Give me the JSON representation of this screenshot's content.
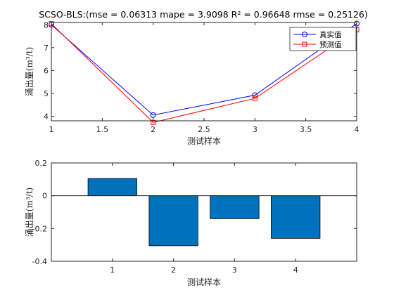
{
  "chart_data": [
    {
      "type": "line",
      "title": "SCSO-BLS:(mse = 0.06313 mape = 3.9098  R² = 0.96648 rmse = 0.25126)",
      "xlabel": "测试样本",
      "ylabel": "涌出量(m³/t)",
      "x": [
        1,
        2,
        3,
        4
      ],
      "xlim": [
        1,
        4
      ],
      "ylim": [
        3.8,
        8.1
      ],
      "xticks": [
        "1",
        "1.5",
        "2",
        "2.5",
        "3",
        "3.5",
        "4"
      ],
      "yticks": [
        "4",
        "5",
        "6",
        "7",
        "8"
      ],
      "grid": false,
      "legend_position": "top-right",
      "series": [
        {
          "name": "真实值",
          "color": "#0000ff",
          "marker": "circle",
          "values": [
            8.0,
            4.05,
            4.92,
            8.05
          ]
        },
        {
          "name": "预测值",
          "color": "#ff0000",
          "marker": "square",
          "values": [
            8.05,
            3.73,
            4.78,
            7.78
          ]
        }
      ]
    },
    {
      "type": "bar",
      "title": "",
      "xlabel": "测试样本",
      "ylabel": "涌出量(m³/t)",
      "categories": [
        "1",
        "2",
        "3",
        "4"
      ],
      "values": [
        0.105,
        -0.305,
        -0.14,
        -0.26
      ],
      "ylim": [
        -0.4,
        0.2
      ],
      "yticks": [
        "-0.4",
        "-0.2",
        "0",
        "0.2"
      ],
      "bar_color": "#0072bd",
      "grid": false
    }
  ]
}
